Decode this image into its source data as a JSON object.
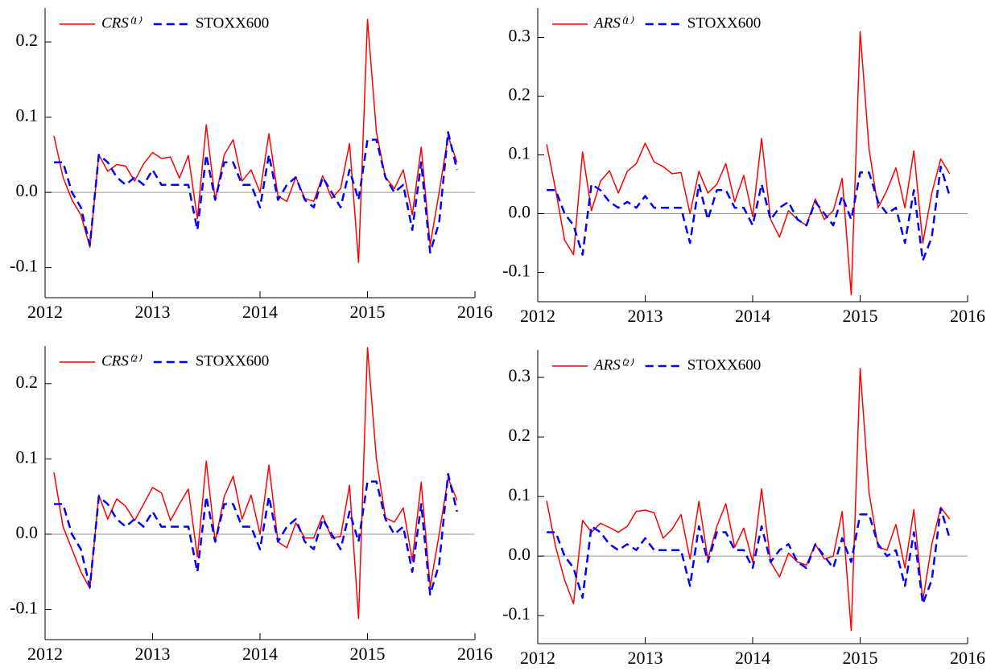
{
  "chart_data": [
    {
      "type": "line",
      "x": [
        2012.083,
        2012.167,
        2012.25,
        2012.333,
        2012.417,
        2012.5,
        2012.583,
        2012.667,
        2012.75,
        2012.833,
        2012.917,
        2013,
        2013.083,
        2013.167,
        2013.25,
        2013.333,
        2013.417,
        2013.5,
        2013.583,
        2013.667,
        2013.75,
        2013.833,
        2013.917,
        2014,
        2014.083,
        2014.167,
        2014.25,
        2014.333,
        2014.417,
        2014.5,
        2014.583,
        2014.667,
        2014.75,
        2014.833,
        2014.917,
        2015,
        2015.083,
        2015.167,
        2015.25,
        2015.333,
        2015.417,
        2015.5,
        2015.583,
        2015.667,
        2015.75,
        2015.833
      ],
      "xlim": [
        2012,
        2016
      ],
      "xticks": [
        2012,
        2013,
        2014,
        2015,
        2016
      ],
      "ylim": [
        -0.14,
        0.245
      ],
      "yticks": [
        -0.1,
        {
          "value": 0,
          "label": "0.0"
        },
        0.1,
        0.2
      ],
      "series": [
        {
          "name": "CRS⁽¹⁾",
          "color": "#ff0000",
          "line_style": "solid",
          "values": [
            0.075,
            0.02,
            -0.01,
            -0.03,
            -0.073,
            0.05,
            0.028,
            0.037,
            0.035,
            0.015,
            0.038,
            0.053,
            0.045,
            0.047,
            0.019,
            0.049,
            -0.035,
            0.09,
            -0.01,
            0.05,
            0.07,
            0.015,
            0.03,
            0,
            0.078,
            -0.005,
            -0.012,
            0.02,
            -0.008,
            -0.012,
            0.022,
            -0.008,
            0.005,
            0.065,
            -0.093,
            0.23,
            0.08,
            0.02,
            0.005,
            0.03,
            -0.03,
            0.06,
            -0.07,
            0,
            0.075,
            0.04
          ]
        },
        {
          "name": "STOXX600",
          "color": "#0000ff",
          "line_style": "dashed",
          "values": [
            0.04,
            0.04,
            0,
            -0.02,
            -0.07,
            0.05,
            0.04,
            0.02,
            0.01,
            0.02,
            0.01,
            0.03,
            0.01,
            0.01,
            0.01,
            0.01,
            -0.05,
            0.05,
            -0.01,
            0.04,
            0.04,
            0.01,
            0.01,
            -0.02,
            0.05,
            -0.01,
            0.01,
            0.02,
            -0.01,
            -0.02,
            0.02,
            0,
            -0.02,
            0.03,
            -0.01,
            0.07,
            0.07,
            0.02,
            0,
            0.01,
            -0.05,
            0.04,
            -0.08,
            -0.04,
            0.08,
            0.03
          ]
        }
      ]
    },
    {
      "type": "line",
      "x": [
        2012.083,
        2012.167,
        2012.25,
        2012.333,
        2012.417,
        2012.5,
        2012.583,
        2012.667,
        2012.75,
        2012.833,
        2012.917,
        2013,
        2013.083,
        2013.167,
        2013.25,
        2013.333,
        2013.417,
        2013.5,
        2013.583,
        2013.667,
        2013.75,
        2013.833,
        2013.917,
        2014,
        2014.083,
        2014.167,
        2014.25,
        2014.333,
        2014.417,
        2014.5,
        2014.583,
        2014.667,
        2014.75,
        2014.833,
        2014.917,
        2015,
        2015.083,
        2015.167,
        2015.25,
        2015.333,
        2015.417,
        2015.5,
        2015.583,
        2015.667,
        2015.75,
        2015.833
      ],
      "xlim": [
        2012,
        2016
      ],
      "xticks": [
        2012,
        2013,
        2014,
        2015,
        2016
      ],
      "ylim": [
        -0.15,
        0.35
      ],
      "yticks": [
        -0.1,
        {
          "value": 0,
          "label": "0.0"
        },
        0.1,
        0.2,
        0.3
      ],
      "series": [
        {
          "name": "ARS⁽¹⁾",
          "color": "#ff0000",
          "line_style": "solid",
          "values": [
            0.118,
            0.04,
            -0.045,
            -0.07,
            0.105,
            0.005,
            0.055,
            0.073,
            0.035,
            0.072,
            0.085,
            0.12,
            0.088,
            0.08,
            0.068,
            0.07,
            0,
            0.072,
            0.035,
            0.05,
            0.085,
            0.02,
            0.065,
            -0.005,
            0.128,
            -0.01,
            -0.04,
            0.005,
            -0.01,
            -0.02,
            0.025,
            -0.01,
            0.005,
            0.06,
            -0.138,
            0.31,
            0.11,
            0.01,
            0.04,
            0.078,
            0.01,
            0.107,
            -0.05,
            0.035,
            0.093,
            0.068
          ]
        },
        {
          "name": "STOXX600",
          "color": "#0000ff",
          "line_style": "dashed",
          "values": [
            0.04,
            0.04,
            0,
            -0.02,
            -0.07,
            0.05,
            0.04,
            0.02,
            0.01,
            0.02,
            0.01,
            0.03,
            0.01,
            0.01,
            0.01,
            0.01,
            -0.05,
            0.05,
            -0.01,
            0.04,
            0.04,
            0.01,
            0.01,
            -0.02,
            0.05,
            -0.01,
            0.01,
            0.02,
            -0.01,
            -0.02,
            0.02,
            0,
            -0.02,
            0.03,
            -0.01,
            0.07,
            0.07,
            0.02,
            0,
            0.01,
            -0.05,
            0.04,
            -0.08,
            -0.04,
            0.08,
            0.03
          ]
        }
      ]
    },
    {
      "type": "line",
      "x": [
        2012.083,
        2012.167,
        2012.25,
        2012.333,
        2012.417,
        2012.5,
        2012.583,
        2012.667,
        2012.75,
        2012.833,
        2012.917,
        2013,
        2013.083,
        2013.167,
        2013.25,
        2013.333,
        2013.417,
        2013.5,
        2013.583,
        2013.667,
        2013.75,
        2013.833,
        2013.917,
        2014,
        2014.083,
        2014.167,
        2014.25,
        2014.333,
        2014.417,
        2014.5,
        2014.583,
        2014.667,
        2014.75,
        2014.833,
        2014.917,
        2015,
        2015.083,
        2015.167,
        2015.25,
        2015.333,
        2015.417,
        2015.5,
        2015.583,
        2015.667,
        2015.75,
        2015.833
      ],
      "xlim": [
        2012,
        2016
      ],
      "xticks": [
        2012,
        2013,
        2014,
        2015,
        2016
      ],
      "ylim": [
        -0.14,
        0.25
      ],
      "yticks": [
        -0.1,
        {
          "value": 0,
          "label": "0.0"
        },
        0.1,
        0.2
      ],
      "series": [
        {
          "name": "CRS⁽²⁾",
          "color": "#ff0000",
          "line_style": "solid",
          "values": [
            0.082,
            0.01,
            -0.02,
            -0.05,
            -0.072,
            0.052,
            0.02,
            0.047,
            0.037,
            0.018,
            0.04,
            0.062,
            0.055,
            0.018,
            0.04,
            0.06,
            -0.03,
            0.097,
            -0.01,
            0.05,
            0.077,
            0.02,
            0.052,
            0,
            0.092,
            -0.01,
            -0.018,
            0.015,
            -0.005,
            -0.005,
            0.025,
            -0.005,
            -0.003,
            0.065,
            -0.112,
            0.248,
            0.1,
            0.022,
            0.016,
            0.035,
            -0.035,
            0.069,
            -0.07,
            0,
            0.075,
            0.045
          ]
        },
        {
          "name": "STOXX600",
          "color": "#0000ff",
          "line_style": "dashed",
          "values": [
            0.04,
            0.04,
            0,
            -0.02,
            -0.07,
            0.05,
            0.04,
            0.02,
            0.01,
            0.02,
            0.01,
            0.03,
            0.01,
            0.01,
            0.01,
            0.01,
            -0.05,
            0.05,
            -0.01,
            0.04,
            0.04,
            0.01,
            0.01,
            -0.02,
            0.05,
            -0.01,
            0.01,
            0.02,
            -0.01,
            -0.02,
            0.02,
            0,
            -0.02,
            0.03,
            -0.01,
            0.07,
            0.07,
            0.02,
            0,
            0.01,
            -0.05,
            0.04,
            -0.08,
            -0.04,
            0.08,
            0.03
          ]
        }
      ]
    },
    {
      "type": "line",
      "x": [
        2012.083,
        2012.167,
        2012.25,
        2012.333,
        2012.417,
        2012.5,
        2012.583,
        2012.667,
        2012.75,
        2012.833,
        2012.917,
        2013,
        2013.083,
        2013.167,
        2013.25,
        2013.333,
        2013.417,
        2013.5,
        2013.583,
        2013.667,
        2013.75,
        2013.833,
        2013.917,
        2014,
        2014.083,
        2014.167,
        2014.25,
        2014.333,
        2014.417,
        2014.5,
        2014.583,
        2014.667,
        2014.75,
        2014.833,
        2014.917,
        2015,
        2015.083,
        2015.167,
        2015.25,
        2015.333,
        2015.417,
        2015.5,
        2015.583,
        2015.667,
        2015.75,
        2015.833
      ],
      "xlim": [
        2012,
        2016
      ],
      "xticks": [
        2012,
        2013,
        2014,
        2015,
        2016
      ],
      "ylim": [
        -0.147,
        0.346
      ],
      "yticks": [
        -0.1,
        {
          "value": 0,
          "label": "0.0"
        },
        0.1,
        0.2,
        0.3
      ],
      "series": [
        {
          "name": "ARS⁽²⁾",
          "color": "#ff0000",
          "line_style": "solid",
          "values": [
            0.093,
            0.015,
            -0.04,
            -0.08,
            0.06,
            0.04,
            0.055,
            0.048,
            0.04,
            0.05,
            0.075,
            0.077,
            0.073,
            0.03,
            0.045,
            0.07,
            -0.005,
            0.092,
            -0.005,
            0.05,
            0.088,
            0.015,
            0.047,
            -0.01,
            0.113,
            -0.01,
            -0.035,
            0.005,
            -0.01,
            -0.015,
            0.02,
            -0.005,
            0,
            0.075,
            -0.125,
            0.315,
            0.107,
            0.015,
            0.01,
            0.053,
            -0.02,
            0.078,
            -0.075,
            0.02,
            0.082,
            0.062
          ]
        },
        {
          "name": "STOXX600",
          "color": "#0000ff",
          "line_style": "dashed",
          "values": [
            0.04,
            0.04,
            0,
            -0.02,
            -0.07,
            0.05,
            0.04,
            0.02,
            0.01,
            0.02,
            0.01,
            0.03,
            0.01,
            0.01,
            0.01,
            0.01,
            -0.05,
            0.05,
            -0.01,
            0.04,
            0.04,
            0.01,
            0.01,
            -0.02,
            0.05,
            -0.01,
            0.01,
            0.02,
            -0.01,
            -0.02,
            0.02,
            0,
            -0.02,
            0.03,
            -0.01,
            0.07,
            0.07,
            0.02,
            0,
            0.01,
            -0.05,
            0.04,
            -0.08,
            -0.04,
            0.08,
            0.03
          ]
        }
      ]
    }
  ]
}
